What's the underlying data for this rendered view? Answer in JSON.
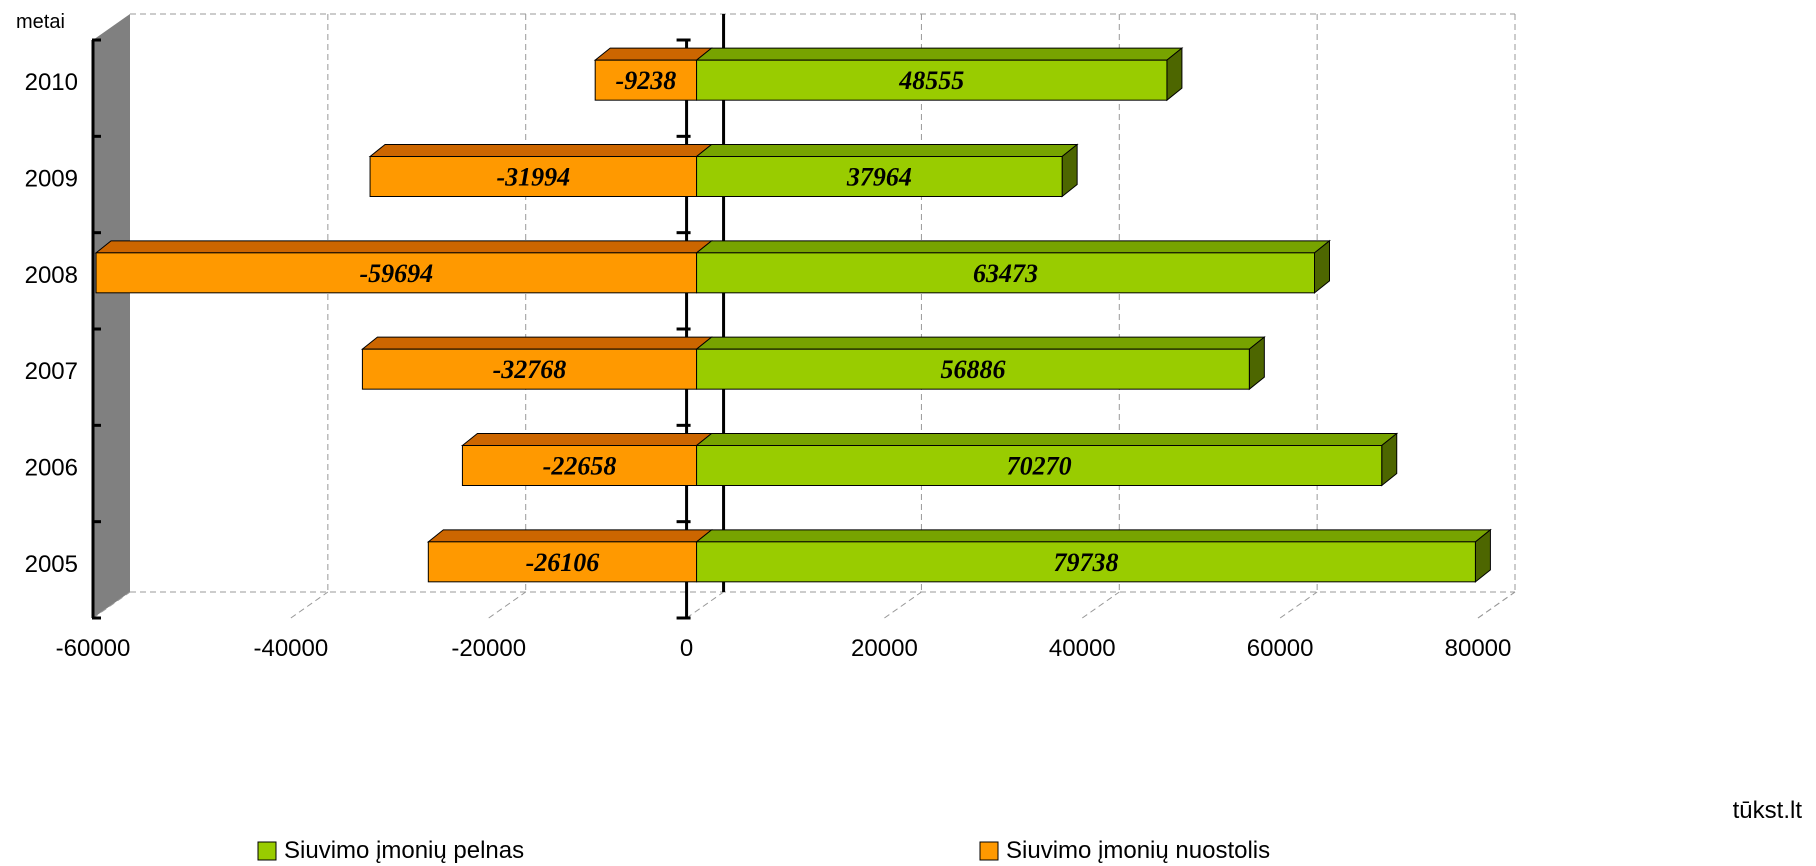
{
  "chart_data": {
    "type": "bar",
    "orientation": "horizontal",
    "three_d": true,
    "categories": [
      "2005",
      "2006",
      "2007",
      "2008",
      "2009",
      "2010"
    ],
    "series": [
      {
        "name": "Siuvimo įmonių pelnas",
        "values": [
          79738,
          70270,
          56886,
          63473,
          37964,
          48555
        ],
        "color": "#99CC00"
      },
      {
        "name": "Siuvimo įmonių nuostolis",
        "values": [
          -26106,
          -22658,
          -32768,
          -59694,
          -31994,
          -9238
        ],
        "color": "#FF9900"
      }
    ],
    "xlim": [
      -60000,
      80000
    ],
    "x_ticks": [
      -60000,
      -40000,
      -20000,
      0,
      20000,
      40000,
      60000,
      80000
    ],
    "xlabel": "tūkst.lt",
    "ylabel": "metai",
    "grid": true,
    "legend_position": "bottom"
  }
}
